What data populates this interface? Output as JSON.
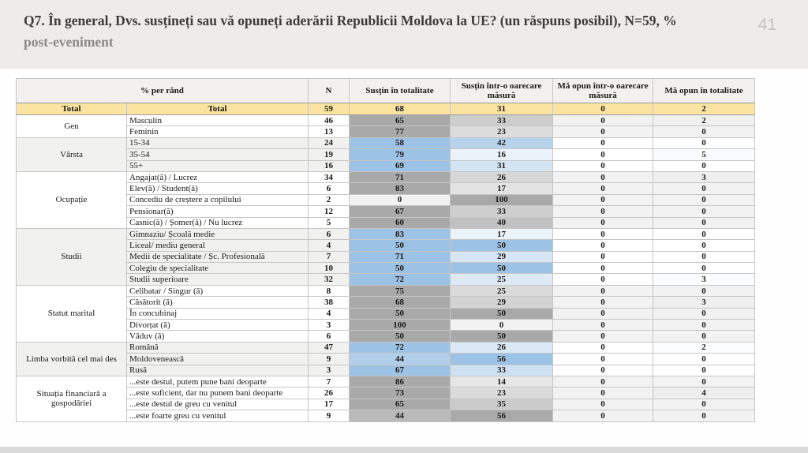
{
  "slide": {
    "title_line1": "Q7. În general, Dvs. susțineți sau vă opuneți aderării Republicii Moldova la UE? (un răspuns posibil), N=59, %",
    "title_line2": "post-eveniment",
    "page_number": "41"
  },
  "table": {
    "header": {
      "col_group": "% per rând",
      "col_n": "N",
      "cols": [
        "Susțin în totalitate",
        "Susțin într-o oarecare măsură",
        "Mă opun într-o oarecare măsură",
        "Mă opun în totalitate"
      ]
    },
    "total_row": {
      "label_group": "Total",
      "label_sub": "Total",
      "n": "59",
      "values": [
        68,
        31,
        0,
        2
      ]
    },
    "sections": [
      {
        "label": "Gen",
        "scheme": "gray",
        "rows": [
          {
            "label": "Masculin",
            "n": "46",
            "values": [
              65,
              33,
              0,
              2
            ]
          },
          {
            "label": "Feminin",
            "n": "13",
            "values": [
              77,
              23,
              0,
              0
            ]
          }
        ]
      },
      {
        "label": "Vârsta",
        "scheme": "blue",
        "rows": [
          {
            "label": "15-34",
            "n": "24",
            "values": [
              58,
              42,
              0,
              0
            ]
          },
          {
            "label": "35-54",
            "n": "19",
            "values": [
              79,
              16,
              0,
              5
            ]
          },
          {
            "label": "55+",
            "n": "16",
            "values": [
              69,
              31,
              0,
              0
            ]
          }
        ]
      },
      {
        "label": "Ocupație",
        "scheme": "gray",
        "rows": [
          {
            "label": "Angajat(ă) / Lucrez",
            "n": "34",
            "values": [
              71,
              26,
              0,
              3
            ]
          },
          {
            "label": "Elev(ă) / Student(ă)",
            "n": "6",
            "values": [
              83,
              17,
              0,
              0
            ]
          },
          {
            "label": "Concediu de creștere a copilului",
            "n": "2",
            "values": [
              0,
              100,
              0,
              0
            ]
          },
          {
            "label": "Pensionar(ă)",
            "n": "12",
            "values": [
              67,
              33,
              0,
              0
            ]
          },
          {
            "label": "Casnic(ă) / Șomer(ă) / Nu lucrez",
            "n": "5",
            "values": [
              60,
              40,
              0,
              0
            ]
          }
        ]
      },
      {
        "label": "Studii",
        "scheme": "blue",
        "rows": [
          {
            "label": "Gimnaziu/ Școală medie",
            "n": "6",
            "values": [
              83,
              17,
              0,
              0
            ]
          },
          {
            "label": "Liceal/ mediu general",
            "n": "4",
            "values": [
              50,
              50,
              0,
              0
            ]
          },
          {
            "label": "Medii de specialitate / Șc. Profesională",
            "n": "7",
            "values": [
              71,
              29,
              0,
              0
            ]
          },
          {
            "label": "Colegiu de specialitate",
            "n": "10",
            "values": [
              50,
              50,
              0,
              0
            ]
          },
          {
            "label": "Studii superioare",
            "n": "32",
            "values": [
              72,
              25,
              0,
              3
            ]
          }
        ]
      },
      {
        "label": "Statut marital",
        "scheme": "gray",
        "rows": [
          {
            "label": "Celibatar / Singur (ă)",
            "n": "8",
            "values": [
              75,
              25,
              0,
              0
            ]
          },
          {
            "label": "Căsătorit (ă)",
            "n": "38",
            "values": [
              68,
              29,
              0,
              3
            ]
          },
          {
            "label": "În concubinaj",
            "n": "4",
            "values": [
              50,
              50,
              0,
              0
            ]
          },
          {
            "label": "Divorțat (ă)",
            "n": "3",
            "values": [
              100,
              0,
              0,
              0
            ]
          },
          {
            "label": "Văduv (ă)",
            "n": "6",
            "values": [
              50,
              50,
              0,
              0
            ]
          }
        ]
      },
      {
        "label": "Limba vorbită cel mai des",
        "scheme": "blue",
        "rows": [
          {
            "label": "Română",
            "n": "47",
            "values": [
              72,
              26,
              0,
              2
            ]
          },
          {
            "label": "Moldovenească",
            "n": "9",
            "values": [
              44,
              56,
              0,
              0
            ]
          },
          {
            "label": "Rusă",
            "n": "3",
            "values": [
              67,
              33,
              0,
              0
            ]
          }
        ]
      },
      {
        "label": "Situația financiară a gospodăriei",
        "scheme": "gray",
        "rows": [
          {
            "label": "...este destul, putem pune bani deoparte",
            "n": "7",
            "values": [
              86,
              14,
              0,
              0
            ]
          },
          {
            "label": "...este suficient, dar nu punem bani deoparte",
            "n": "26",
            "values": [
              73,
              23,
              0,
              4
            ]
          },
          {
            "label": "...este destul de greu cu venitul",
            "n": "17",
            "values": [
              65,
              35,
              0,
              0
            ]
          },
          {
            "label": "...este foarte greu cu venitul",
            "n": "9",
            "values": [
              44,
              56,
              0,
              0
            ]
          }
        ]
      }
    ],
    "colors": {
      "total_bg": "#FBE3A2",
      "header_bg": "#F2F1F0",
      "band_bg": "#F1F1F0",
      "white_bg": "#FFFFFF",
      "blue_max": "#9CC2E5",
      "blue_min": "#FFFFFF",
      "gray_max": "#A9A9A9",
      "gray_min": "#F2F2F2",
      "border": "#C6C6C6"
    }
  }
}
